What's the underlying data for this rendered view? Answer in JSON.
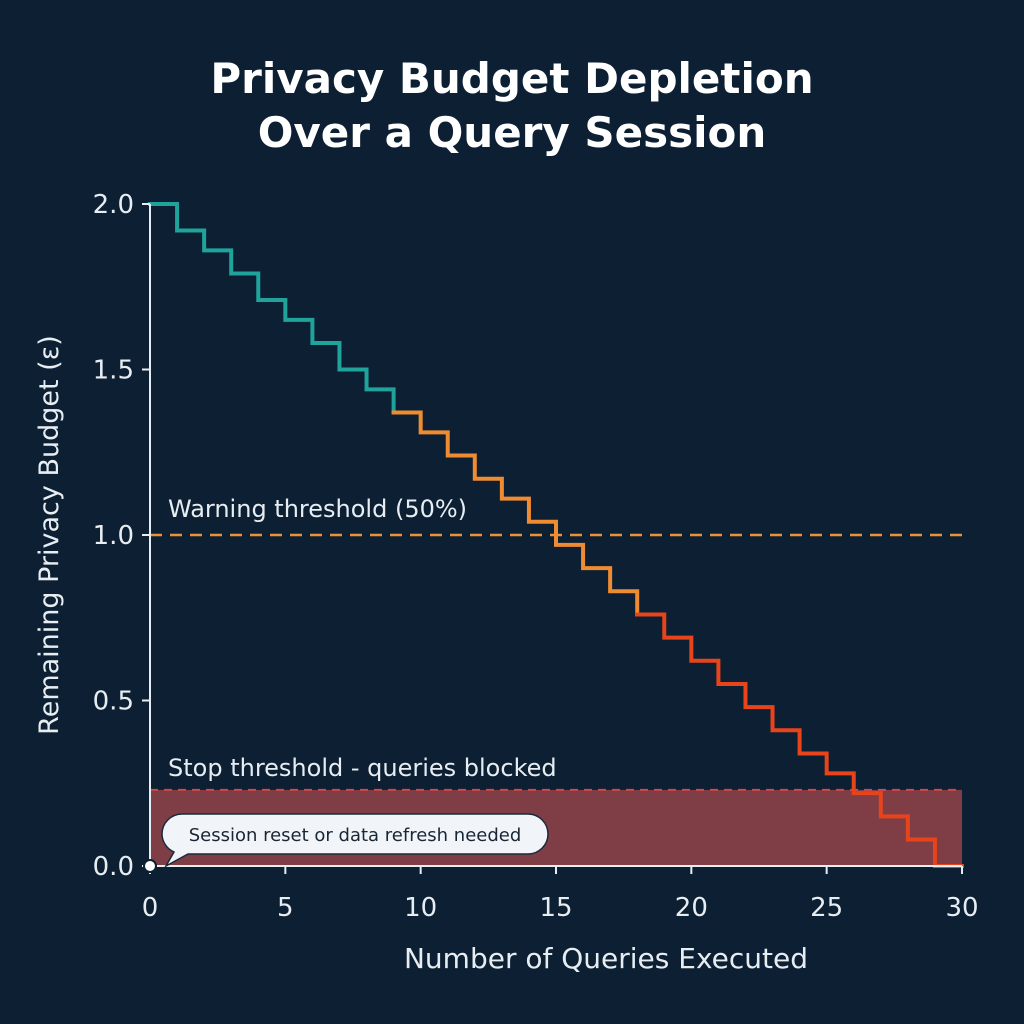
{
  "colors": {
    "background": "#0c1f33",
    "axis": "#e8edf2",
    "text": "#e8edf2",
    "step_teal": "#1fa39a",
    "step_orange": "#ef8c32",
    "step_red": "#e8441c",
    "warning_line": "#e8923a",
    "stop_line": "#d24848",
    "stop_fill": "#8c4148"
  },
  "chart_data": {
    "type": "line",
    "title": [
      "Privacy Budget Depletion",
      "Over a Query Session"
    ],
    "xlabel": "Number of Queries Executed",
    "ylabel": "Remaining Privacy Budget (ε)",
    "xlim": [
      0,
      30
    ],
    "ylim": [
      0,
      2.0
    ],
    "xticks": [
      0,
      5,
      10,
      15,
      20,
      25,
      30
    ],
    "xtick_labels": [
      "0",
      "5",
      "10",
      "15",
      "20",
      "25",
      "30"
    ],
    "yticks": [
      0,
      0.5,
      1.0,
      1.5,
      2.0
    ],
    "ytick_labels": [
      "0.0",
      "0.5",
      "1.0",
      "1.5",
      "2.0"
    ],
    "grid": false,
    "step": true,
    "series": [
      {
        "x": [
          0,
          1,
          2,
          3,
          4,
          5,
          6,
          7,
          8,
          9,
          10,
          11,
          12,
          13,
          14,
          15,
          16,
          17,
          18,
          19,
          20,
          21,
          22,
          23,
          24,
          25,
          26,
          27,
          28,
          29,
          30
        ],
        "values": [
          2.0,
          1.92,
          1.86,
          1.79,
          1.71,
          1.65,
          1.58,
          1.5,
          1.44,
          1.37,
          1.31,
          1.24,
          1.17,
          1.11,
          1.04,
          0.97,
          0.9,
          0.83,
          0.76,
          0.69,
          0.62,
          0.55,
          0.48,
          0.41,
          0.34,
          0.28,
          0.22,
          0.15,
          0.08,
          0.0,
          0.0
        ],
        "color_segments": [
          {
            "from": 0,
            "to": 9,
            "color": "#1fa39a"
          },
          {
            "from": 9,
            "to": 18,
            "color": "#ef8c32"
          },
          {
            "from": 18,
            "to": 30,
            "color": "#e8441c"
          }
        ]
      }
    ],
    "thresholds": [
      {
        "label": "Warning threshold (50%)",
        "value": 1.0,
        "color": "#e8923a",
        "style": "dashed"
      },
      {
        "label": "Stop threshold - queries blocked",
        "value": 0.23,
        "color": "#d24848",
        "style": "dashed",
        "shaded_below": true
      }
    ],
    "annotations": [
      {
        "text": "Session reset or data refresh needed",
        "x": 0,
        "y": 0
      }
    ]
  }
}
